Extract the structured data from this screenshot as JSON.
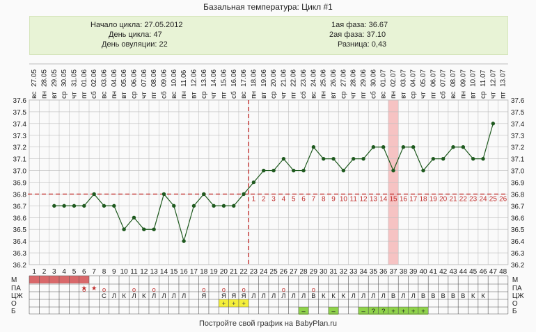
{
  "title": "Базальная температура: Цикл #1",
  "info": {
    "start_label": "Начало цикла:",
    "start_value": "27.05.2012",
    "day_label": "День цикла:",
    "day_value": "47",
    "ovul_label": "День овуляции:",
    "ovul_value": "22",
    "phase1_label": "1ая фаза:",
    "phase1_value": "36.67",
    "phase2_label": "2ая фаза:",
    "phase2_value": "37.10",
    "diff_label": "Разница:",
    "diff_value": "0,43"
  },
  "footer": "Постройте свой график на BabyPlan.ru",
  "colors": {
    "line": "#1f5a1f",
    "coverline": "#c0302e",
    "highlight": "#f6c3c3",
    "grid": "#bdbdbd",
    "menses": "#d9686a",
    "plus": "#f4ef3a",
    "green": "#8fd34a"
  },
  "chart_data": {
    "type": "line",
    "ylim": [
      36.2,
      37.6
    ],
    "yticks": [
      "37.6",
      "37.5",
      "37.4",
      "37.3",
      "37.2",
      "37.1",
      "37.0",
      "36.9",
      "36.8",
      "36.7",
      "36.6",
      "36.5",
      "36.4",
      "36.3",
      "36.2"
    ],
    "coverline": 36.8,
    "ovulation_day": 22,
    "highlight_day": 37,
    "dates": [
      "27.05",
      "28.05",
      "29.05",
      "30.05",
      "31.05",
      "01.06",
      "02.06",
      "03.06",
      "04.06",
      "05.06",
      "06.06",
      "07.06",
      "08.06",
      "09.06",
      "10.06",
      "11.06",
      "12.06",
      "13.06",
      "14.06",
      "15.06",
      "16.06",
      "17.06",
      "18.06",
      "19.06",
      "20.06",
      "21.06",
      "22.06",
      "23.06",
      "24.06",
      "25.06",
      "26.06",
      "27.06",
      "28.06",
      "29.06",
      "30.06",
      "01.07",
      "02.07",
      "03.07",
      "04.07",
      "05.07",
      "06.07",
      "07.07",
      "08.07",
      "09.07",
      "10.07",
      "11.07",
      "12.07",
      "13.07"
    ],
    "weekdays": [
      "вс",
      "пн",
      "вт",
      "ср",
      "чт",
      "пт",
      "сб",
      "вс",
      "пн",
      "вт",
      "ср",
      "чт",
      "пт",
      "сб",
      "вс",
      "пн",
      "вт",
      "ср",
      "чт",
      "пт",
      "сб",
      "вс",
      "пн",
      "вт",
      "ср",
      "чт",
      "пт",
      "сб",
      "вс",
      "пн",
      "вт",
      "ср",
      "чт",
      "пт",
      "сб",
      "вс",
      "пн",
      "вт",
      "ср",
      "чт",
      "пт",
      "сб",
      "вс",
      "пн",
      "вт",
      "ср",
      "чт",
      "пт"
    ],
    "days": [
      "1",
      "2",
      "3",
      "4",
      "5",
      "6",
      "7",
      "8",
      "9",
      "10",
      "11",
      "12",
      "13",
      "14",
      "15",
      "16",
      "17",
      "18",
      "19",
      "20",
      "21",
      "22",
      "23",
      "24",
      "25",
      "26",
      "27",
      "28",
      "29",
      "30",
      "31",
      "32",
      "33",
      "34",
      "35",
      "36",
      "37",
      "38",
      "39",
      "40",
      "41",
      "42",
      "43",
      "44",
      "45",
      "46",
      "47",
      "48"
    ],
    "temps": [
      null,
      null,
      36.7,
      36.7,
      36.7,
      36.7,
      36.8,
      36.7,
      36.7,
      36.5,
      36.6,
      36.5,
      36.5,
      36.8,
      36.7,
      36.4,
      36.7,
      36.8,
      36.7,
      36.7,
      36.7,
      36.8,
      36.9,
      37.0,
      37.0,
      37.1,
      37.0,
      37.0,
      37.2,
      37.1,
      37.1,
      37.0,
      37.1,
      37.1,
      37.2,
      37.2,
      37.0,
      37.2,
      37.2,
      37.0,
      37.1,
      37.1,
      37.2,
      37.2,
      37.1,
      37.1,
      37.4,
      null
    ],
    "phase2_labels": [
      "1",
      "2",
      "3",
      "4",
      "5",
      "6",
      "7",
      "8",
      "9",
      "10",
      "11",
      "12",
      "13",
      "14",
      "15",
      "16",
      "17",
      "18",
      "19",
      "20",
      "21",
      "22",
      "23",
      "24",
      "25",
      "26"
    ],
    "row_labels": [
      "М",
      "ПА",
      "ЦЖ",
      "О",
      "Б"
    ],
    "pa_marks": {
      "6": "★",
      "7": "★"
    },
    "cz_top": {
      "6": "о",
      "8": "о",
      "11": "о",
      "13": "о",
      "18": "о",
      "20": "о",
      "22": "о",
      "26": "о",
      "29": "о"
    },
    "cz": {
      "8": "С",
      "9": "Л",
      "10": "К",
      "11": "Л",
      "12": "К",
      "13": "Л",
      "14": "Л",
      "15": "Л",
      "16": "Л",
      "18": "Я",
      "20": "Я",
      "21": "Я",
      "22": "Я",
      "23": "Л",
      "24": "Л",
      "25": "Л",
      "26": "Л",
      "27": "Л",
      "28": "Л",
      "29": "В",
      "30": "К",
      "31": "К",
      "32": "К",
      "33": "Л",
      "34": "Л",
      "35": "Л",
      "36": "Л",
      "37": "В",
      "38": "Л",
      "39": "Л",
      "40": "В",
      "41": "В",
      "42": "В",
      "43": "В",
      "44": "В",
      "45": "К",
      "46": "К"
    },
    "ovu": {
      "20": "+",
      "21": "+",
      "22": "+"
    },
    "b": {
      "28": "–",
      "31": "–",
      "34": "–",
      "35": "?",
      "36": "?",
      "37": "+",
      "38": "+",
      "39": "+",
      "40": "+"
    }
  }
}
